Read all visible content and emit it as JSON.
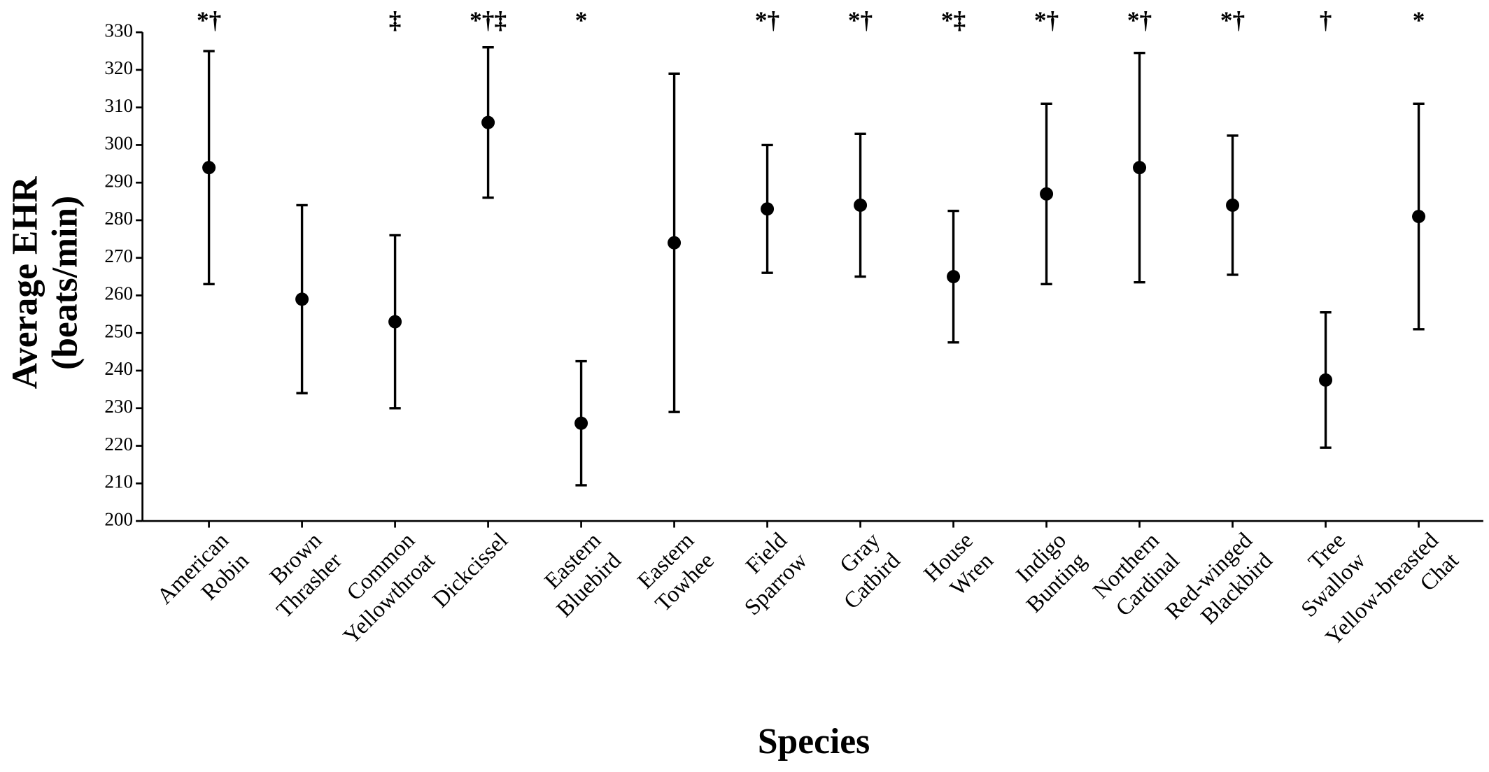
{
  "chart_data": {
    "type": "errorbar",
    "xlabel": "Species",
    "ylabel": [
      "Average EHR",
      "(beats/min)"
    ],
    "categories": [
      [
        "American",
        "Robin"
      ],
      [
        "Brown",
        "Thrasher"
      ],
      [
        "Common",
        "Yellowthroat"
      ],
      [
        "Dickcissel"
      ],
      [
        "Eastern",
        "Bluebird"
      ],
      [
        "Eastern",
        "Towhee"
      ],
      [
        "Field",
        "Sparrow"
      ],
      [
        "Gray",
        "Catbird"
      ],
      [
        "House",
        "Wren"
      ],
      [
        "Indigo",
        "Bunting"
      ],
      [
        "Northern",
        "Cardinal"
      ],
      [
        "Red-winged",
        "Blackbird"
      ],
      [
        "Tree",
        "Swallow"
      ],
      [
        "Yellow-breasted",
        "Chat"
      ]
    ],
    "values": [
      294,
      259,
      253,
      306,
      226,
      274,
      283,
      284,
      265,
      287,
      294,
      284,
      237.5,
      281
    ],
    "errors": [
      31,
      25,
      23,
      20,
      16.5,
      45,
      17,
      19,
      17.5,
      24,
      30.5,
      18.5,
      18,
      30
    ],
    "annotations": [
      "*†",
      null,
      "‡",
      "*†‡",
      "*",
      null,
      "*†",
      "*†",
      "*‡",
      "*†",
      "*†",
      "*†",
      "†",
      "*"
    ],
    "color": "#000000",
    "ylim": [
      200,
      330
    ],
    "yticks": [
      200,
      210,
      220,
      230,
      240,
      250,
      260,
      270,
      280,
      290,
      300,
      310,
      320,
      330
    ]
  }
}
